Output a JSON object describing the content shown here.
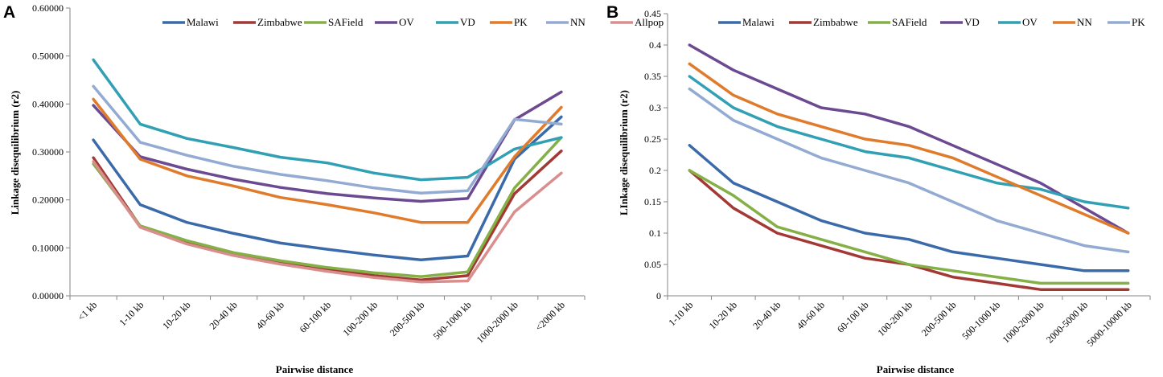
{
  "chart_data": [
    {
      "type": "line",
      "panel": "A",
      "title": "",
      "xlabel": "Pairwise distance",
      "ylabel": "Linkage disequilibrium (r2)",
      "ylim": [
        0,
        0.6
      ],
      "yticks": [
        "0.00000",
        "0.10000",
        "0.20000",
        "0.30000",
        "0.40000",
        "0.50000",
        "0.60000"
      ],
      "categories": [
        "<1 kb",
        "1-10 kb",
        "10-20 kb",
        "20-40 kb",
        "40-60 kb",
        "60-100 kb",
        "100-200 kb",
        "200-500 kb",
        "500-1000 kb",
        "1000-2000 kb",
        "<2000 kb"
      ],
      "series": [
        {
          "name": "Malawi",
          "color": "#3a6aa9",
          "values": [
            0.325,
            0.19,
            0.153,
            0.13,
            0.11,
            0.097,
            0.085,
            0.075,
            0.083,
            0.285,
            0.373
          ]
        },
        {
          "name": "Zimbabwe",
          "color": "#a23935",
          "values": [
            0.288,
            0.145,
            0.112,
            0.088,
            0.07,
            0.055,
            0.042,
            0.033,
            0.042,
            0.213,
            0.302
          ]
        },
        {
          "name": "SAField",
          "color": "#84b046",
          "values": [
            0.275,
            0.146,
            0.115,
            0.09,
            0.073,
            0.059,
            0.048,
            0.04,
            0.05,
            0.225,
            0.33
          ]
        },
        {
          "name": "OV",
          "color": "#6b4a92",
          "values": [
            0.397,
            0.29,
            0.264,
            0.243,
            0.226,
            0.213,
            0.204,
            0.197,
            0.203,
            0.367,
            0.425
          ]
        },
        {
          "name": "VD",
          "color": "#31a0b4",
          "values": [
            0.492,
            0.358,
            0.328,
            0.309,
            0.289,
            0.277,
            0.256,
            0.242,
            0.247,
            0.306,
            0.33
          ]
        },
        {
          "name": "PK",
          "color": "#e07b2c",
          "values": [
            0.41,
            0.285,
            0.25,
            0.229,
            0.205,
            0.19,
            0.173,
            0.153,
            0.153,
            0.29,
            0.393
          ]
        },
        {
          "name": "NN",
          "color": "#93abd3",
          "values": [
            0.437,
            0.32,
            0.293,
            0.27,
            0.253,
            0.24,
            0.225,
            0.214,
            0.219,
            0.368,
            0.358
          ]
        },
        {
          "name": "Allpop",
          "color": "#d98e8e",
          "values": [
            0.28,
            0.143,
            0.108,
            0.084,
            0.066,
            0.051,
            0.038,
            0.029,
            0.031,
            0.175,
            0.256
          ]
        }
      ]
    },
    {
      "type": "line",
      "panel": "B",
      "title": "",
      "xlabel": "Pairwise distance",
      "ylabel": "LInkage disequilibrium (r2)",
      "ylim": [
        0,
        0.45
      ],
      "yticks": [
        "0",
        "0.05",
        "0.1",
        "0.15",
        "0.2",
        "0.25",
        "0.3",
        "0.35",
        "0.4",
        "0.45"
      ],
      "categories": [
        "1-10 kb",
        "10-20 kb",
        "20-40 kb",
        "40-60 kb",
        "60-100 kb",
        "100-200 kb",
        "200-500 kb",
        "500-1000 kb",
        "1000-2000 kb",
        "2000-5000 kb",
        "5000-10000 kb"
      ],
      "series": [
        {
          "name": "Malawi",
          "color": "#3a6aa9",
          "values": [
            0.24,
            0.18,
            0.15,
            0.12,
            0.1,
            0.09,
            0.07,
            0.06,
            0.05,
            0.04,
            0.04
          ]
        },
        {
          "name": "Zimbabwe",
          "color": "#a23935",
          "values": [
            0.2,
            0.14,
            0.1,
            0.08,
            0.06,
            0.05,
            0.03,
            0.02,
            0.01,
            0.01,
            0.01
          ]
        },
        {
          "name": "SAField",
          "color": "#84b046",
          "values": [
            0.2,
            0.16,
            0.11,
            0.09,
            0.07,
            0.05,
            0.04,
            0.03,
            0.02,
            0.02,
            0.02
          ]
        },
        {
          "name": "VD",
          "color": "#6b4a92",
          "values": [
            0.4,
            0.36,
            0.33,
            0.3,
            0.29,
            0.27,
            0.24,
            0.21,
            0.18,
            0.14,
            0.1
          ]
        },
        {
          "name": "OV",
          "color": "#31a0b4",
          "values": [
            0.35,
            0.3,
            0.27,
            0.25,
            0.23,
            0.22,
            0.2,
            0.18,
            0.17,
            0.15,
            0.14
          ]
        },
        {
          "name": "NN",
          "color": "#e07b2c",
          "values": [
            0.37,
            0.32,
            0.29,
            0.27,
            0.25,
            0.24,
            0.22,
            0.19,
            0.16,
            0.13,
            0.1
          ]
        },
        {
          "name": "PK",
          "color": "#93abd3",
          "values": [
            0.33,
            0.28,
            0.25,
            0.22,
            0.2,
            0.18,
            0.15,
            0.12,
            0.1,
            0.08,
            0.07
          ]
        }
      ]
    }
  ]
}
